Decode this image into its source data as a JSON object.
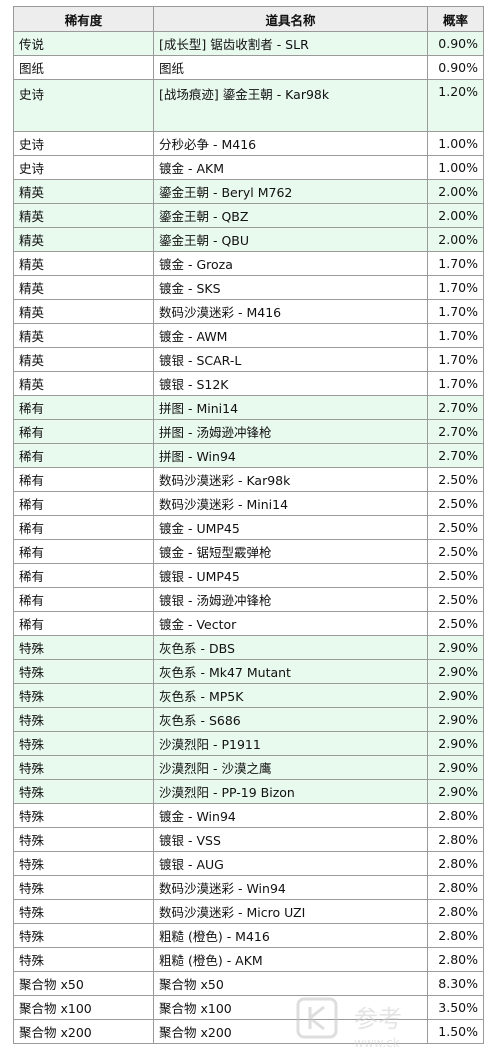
{
  "headers": [
    "稀有度",
    "道具名称",
    "概率"
  ],
  "rows": [
    {
      "rarity": "传说",
      "item": "[成长型] 锯齿收割者 - SLR",
      "rate": "0.90%",
      "hl": true
    },
    {
      "rarity": "图纸",
      "item": "图纸",
      "rate": "0.90%",
      "hl": false
    },
    {
      "rarity": "史诗",
      "item": "[战场痕迹] 鎏金王朝 - Kar98k",
      "rate": "1.20%",
      "hl": true,
      "tall": true
    },
    {
      "rarity": "史诗",
      "item": "分秒必争 - M416",
      "rate": "1.00%",
      "hl": false
    },
    {
      "rarity": "史诗",
      "item": "镀金 - AKM",
      "rate": "1.00%",
      "hl": false
    },
    {
      "rarity": "精英",
      "item": "鎏金王朝 - Beryl M762",
      "rate": "2.00%",
      "hl": true
    },
    {
      "rarity": "精英",
      "item": "鎏金王朝 - QBZ",
      "rate": "2.00%",
      "hl": true
    },
    {
      "rarity": "精英",
      "item": "鎏金王朝 - QBU",
      "rate": "2.00%",
      "hl": true
    },
    {
      "rarity": "精英",
      "item": "镀金 - Groza",
      "rate": "1.70%",
      "hl": false
    },
    {
      "rarity": "精英",
      "item": "镀金 - SKS",
      "rate": "1.70%",
      "hl": false
    },
    {
      "rarity": "精英",
      "item": "数码沙漠迷彩 - M416",
      "rate": "1.70%",
      "hl": false
    },
    {
      "rarity": "精英",
      "item": "镀金 - AWM",
      "rate": "1.70%",
      "hl": false
    },
    {
      "rarity": "精英",
      "item": "镀银 - SCAR-L",
      "rate": "1.70%",
      "hl": false
    },
    {
      "rarity": "精英",
      "item": "镀银 - S12K",
      "rate": "1.70%",
      "hl": false
    },
    {
      "rarity": "稀有",
      "item": "拼图 - Mini14",
      "rate": "2.70%",
      "hl": true
    },
    {
      "rarity": "稀有",
      "item": "拼图 - 汤姆逊冲锋枪",
      "rate": "2.70%",
      "hl": true
    },
    {
      "rarity": "稀有",
      "item": "拼图 - Win94",
      "rate": "2.70%",
      "hl": true
    },
    {
      "rarity": "稀有",
      "item": "数码沙漠迷彩 - Kar98k",
      "rate": "2.50%",
      "hl": false
    },
    {
      "rarity": "稀有",
      "item": "数码沙漠迷彩 - Mini14",
      "rate": "2.50%",
      "hl": false
    },
    {
      "rarity": "稀有",
      "item": "镀金 - UMP45",
      "rate": "2.50%",
      "hl": false
    },
    {
      "rarity": "稀有",
      "item": "镀金 - 锯短型霰弹枪",
      "rate": "2.50%",
      "hl": false
    },
    {
      "rarity": "稀有",
      "item": "镀银 - UMP45",
      "rate": "2.50%",
      "hl": false
    },
    {
      "rarity": "稀有",
      "item": "镀银 - 汤姆逊冲锋枪",
      "rate": "2.50%",
      "hl": false
    },
    {
      "rarity": "稀有",
      "item": "镀金 - Vector",
      "rate": "2.50%",
      "hl": false
    },
    {
      "rarity": "特殊",
      "item": "灰色系 - DBS",
      "rate": "2.90%",
      "hl": true
    },
    {
      "rarity": "特殊",
      "item": "灰色系 - Mk47 Mutant",
      "rate": "2.90%",
      "hl": true
    },
    {
      "rarity": "特殊",
      "item": "灰色系 - MP5K",
      "rate": "2.90%",
      "hl": true
    },
    {
      "rarity": "特殊",
      "item": "灰色系 - S686",
      "rate": "2.90%",
      "hl": true
    },
    {
      "rarity": "特殊",
      "item": "沙漠烈阳 - P1911",
      "rate": "2.90%",
      "hl": true
    },
    {
      "rarity": "特殊",
      "item": "沙漠烈阳 - 沙漠之鹰",
      "rate": "2.90%",
      "hl": true
    },
    {
      "rarity": "特殊",
      "item": "沙漠烈阳 - PP-19 Bizon",
      "rate": "2.90%",
      "hl": true
    },
    {
      "rarity": "特殊",
      "item": "镀金 - Win94",
      "rate": "2.80%",
      "hl": false
    },
    {
      "rarity": "特殊",
      "item": "镀银 - VSS",
      "rate": "2.80%",
      "hl": false
    },
    {
      "rarity": "特殊",
      "item": "镀银 - AUG",
      "rate": "2.80%",
      "hl": false
    },
    {
      "rarity": "特殊",
      "item": "数码沙漠迷彩 - Win94",
      "rate": "2.80%",
      "hl": false
    },
    {
      "rarity": "特殊",
      "item": "数码沙漠迷彩 - Micro UZI",
      "rate": "2.80%",
      "hl": false
    },
    {
      "rarity": "特殊",
      "item": "粗糙 (橙色) - M416",
      "rate": "2.80%",
      "hl": false
    },
    {
      "rarity": "特殊",
      "item": "粗糙 (橙色) - AKM",
      "rate": "2.80%",
      "hl": false
    },
    {
      "rarity": "聚合物 x50",
      "item": "聚合物 x50",
      "rate": "8.30%",
      "hl": false
    },
    {
      "rarity": "聚合物 x100",
      "item": "聚合物 x100",
      "rate": "3.50%",
      "hl": false
    },
    {
      "rarity": "聚合物 x200",
      "item": "聚合物 x200",
      "rate": "1.50%",
      "hl": false
    }
  ],
  "watermark": {
    "text": "参考",
    "url": "www.ck"
  },
  "colors": {
    "highlight": "#e8f9ee",
    "header": "#ededed",
    "border": "#9a9a9a"
  }
}
